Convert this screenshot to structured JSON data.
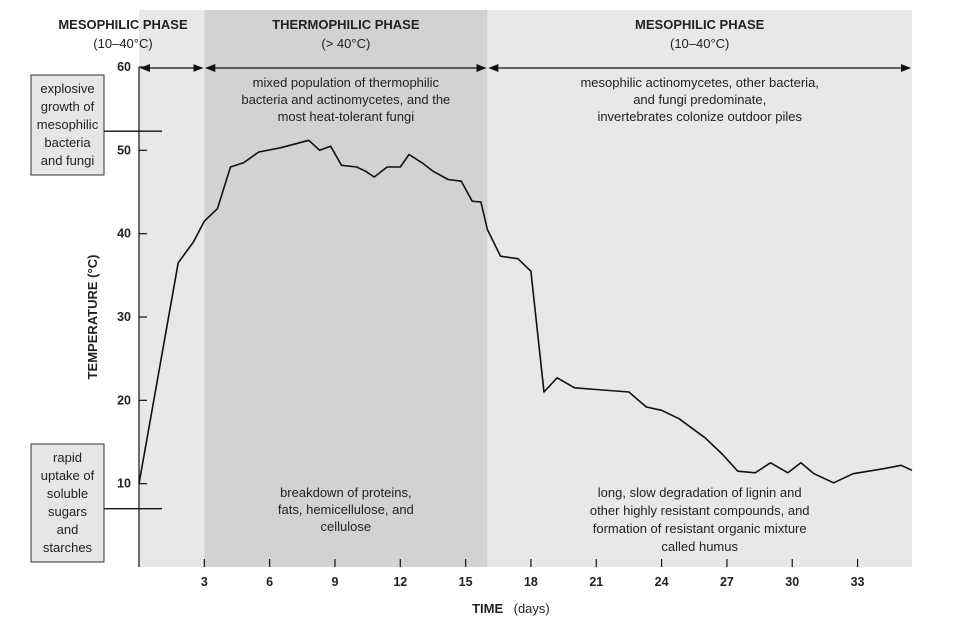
{
  "chart_data": {
    "type": "line",
    "title": "",
    "xlabel": "TIME",
    "xlabel_unit": "(days)",
    "ylabel": "TEMPERATURE (°C)",
    "xlim": [
      0,
      35.5
    ],
    "ylim": [
      0,
      60
    ],
    "xticks": [
      "3",
      "6",
      "9",
      "12",
      "15",
      "18",
      "21",
      "24",
      "27",
      "30",
      "33"
    ],
    "yticks": [
      "10",
      "20",
      "30",
      "40",
      "50",
      "60"
    ],
    "grid": false,
    "series": [
      {
        "x": [
          0,
          1.8,
          2.5,
          3,
          3.6,
          4.2,
          4.8,
          5.5,
          6.5,
          7.8,
          8.3,
          8.8,
          9.3,
          10,
          10.4,
          10.8,
          11.4,
          12,
          12.4,
          13,
          13.5,
          14.2,
          14.8,
          15.3,
          15.7,
          16,
          16.6,
          17.4,
          18,
          18.6,
          19.2,
          20,
          21,
          22.5,
          23.3,
          24,
          24.8,
          26,
          26.8,
          27.5,
          28.3,
          29,
          29.8,
          30.4,
          31,
          31.9,
          32.8,
          34.2,
          35,
          35.5
        ],
        "y": [
          10,
          36.5,
          39,
          41.5,
          43,
          48,
          48.5,
          49.8,
          50.3,
          51.2,
          50,
          50.5,
          48.2,
          48,
          47.5,
          46.8,
          48,
          48,
          49.5,
          48.5,
          47.5,
          46.5,
          46.3,
          43.9,
          43.8,
          40.5,
          37.3,
          37,
          35.5,
          21,
          22.7,
          21.5,
          21.3,
          21,
          19.2,
          18.8,
          17.8,
          15.5,
          13.5,
          11.5,
          11.3,
          12.5,
          11.3,
          12.5,
          11.2,
          10.1,
          11.2,
          11.8,
          12.2,
          11.6
        ]
      }
    ],
    "phases": [
      {
        "name": "MESOPHILIC PHASE",
        "range": "(10–40°C)",
        "x_start": 0,
        "x_end": 3
      },
      {
        "name": "THERMOPHILIC PHASE",
        "range": "(> 40°C)",
        "x_start": 3,
        "x_end": 16
      },
      {
        "name": "MESOPHILIC PHASE",
        "range": "(10–40°C)",
        "x_start": 16,
        "x_end": 35.5
      }
    ],
    "annotations": {
      "thermo_top": [
        "mixed population of thermophilic",
        "bacteria and actinomycetes, and the",
        "most heat-tolerant fungi"
      ],
      "meso2_top": [
        "mesophilic actinomycetes, other bacteria,",
        "and fungi predominate,",
        "invertebrates colonize outdoor piles"
      ],
      "thermo_bottom": [
        "breakdown of proteins,",
        "fats, hemicellulose, and",
        "cellulose"
      ],
      "meso2_bottom": [
        "long, slow degradation of lignin and",
        "other highly resistant compounds, and",
        "formation of resistant organic mixture",
        "called humus"
      ],
      "side_top": [
        "explosive",
        "growth of",
        "mesophilic",
        "bacteria",
        "and fungi"
      ],
      "side_bottom": [
        "rapid",
        "uptake of",
        "soluble",
        "sugars",
        "and",
        "starches"
      ]
    },
    "colors": {
      "meso_band": "#e8e8e8",
      "thermo_band": "#d2d2d2",
      "line": "#111111",
      "box_fill": "#e6e6e6"
    }
  }
}
